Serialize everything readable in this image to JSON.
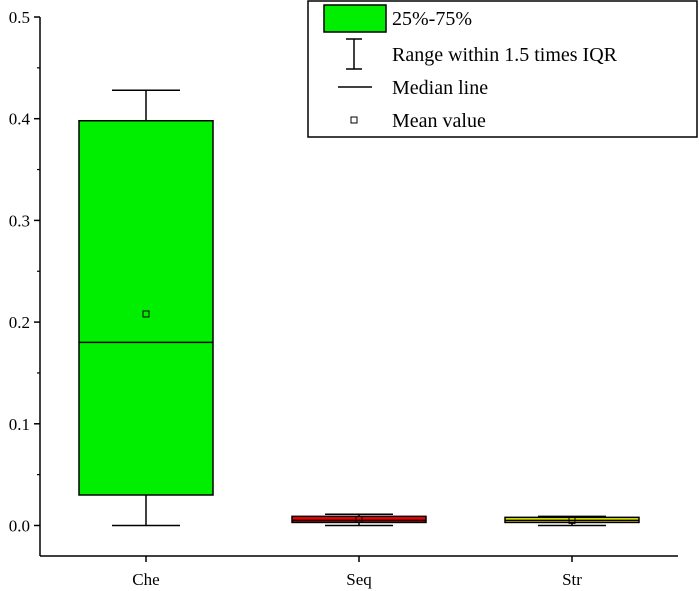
{
  "chart_data": {
    "type": "box",
    "categories": [
      "Che",
      "Seq",
      "Str"
    ],
    "ylim": [
      -0.03,
      0.5
    ],
    "yticks": [
      {
        "value": 0.0,
        "label": "0.0"
      },
      {
        "value": 0.1,
        "label": "0.1"
      },
      {
        "value": 0.2,
        "label": "0.2"
      },
      {
        "value": 0.3,
        "label": "0.3"
      },
      {
        "value": 0.4,
        "label": "0.4"
      },
      {
        "value": 0.5,
        "label": "0.5"
      }
    ],
    "boxes": [
      {
        "category": "Che",
        "whisker_low": 0.0,
        "q1": 0.03,
        "median": 0.18,
        "q3": 0.398,
        "whisker_high": 0.428,
        "mean": 0.208,
        "color": "#00ee00"
      },
      {
        "category": "Seq",
        "whisker_low": 0.0,
        "q1": 0.003,
        "median": 0.005,
        "q3": 0.009,
        "whisker_high": 0.011,
        "mean": 0.006,
        "color": "#ee0000"
      },
      {
        "category": "Str",
        "whisker_low": 0.0,
        "q1": 0.003,
        "median": 0.005,
        "q3": 0.008,
        "whisker_high": 0.009,
        "mean": 0.005,
        "color": "#eeee00"
      }
    ],
    "legend": {
      "placement": "top-right",
      "entries": [
        {
          "label": "25%-75%",
          "symbol": "box",
          "color": "#00ee00"
        },
        {
          "label": "Range within 1.5 times IQR",
          "symbol": "whisker"
        },
        {
          "label": "Median line",
          "symbol": "line"
        },
        {
          "label": "Mean value",
          "symbol": "square"
        }
      ]
    }
  }
}
